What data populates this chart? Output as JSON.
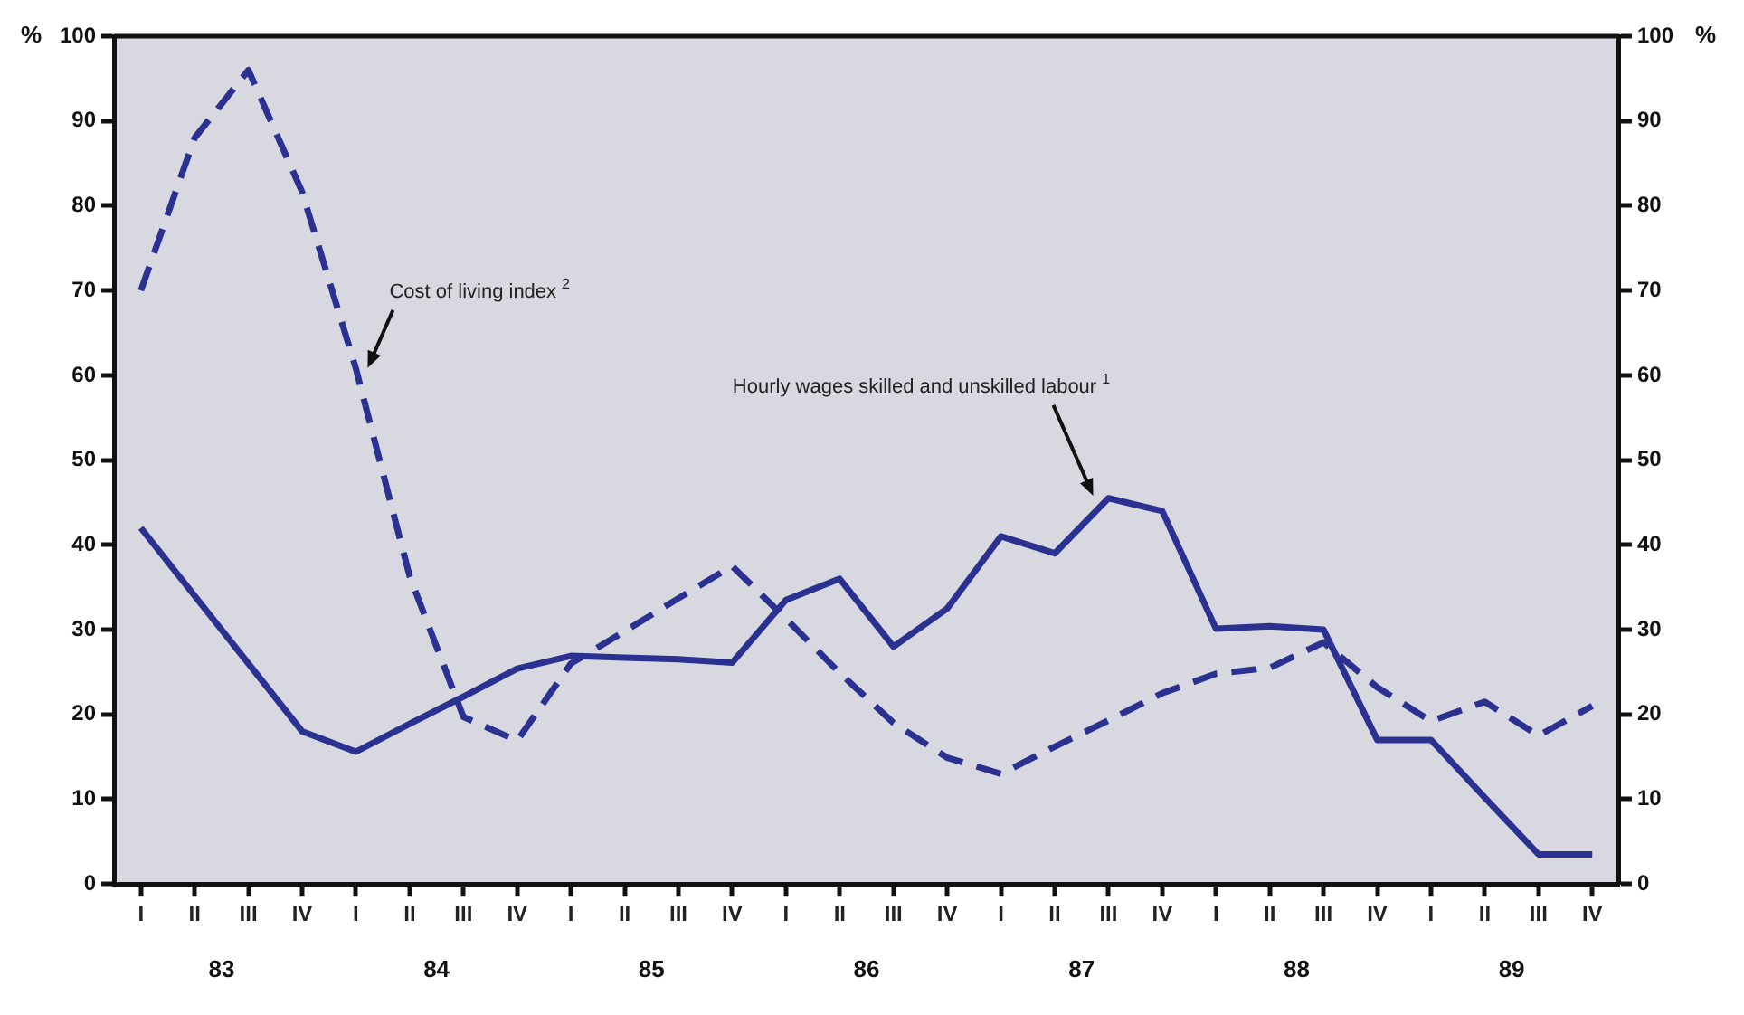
{
  "chart_data": {
    "type": "line",
    "ylabel": "%",
    "y2label": "%",
    "categories": [
      "I",
      "II",
      "III",
      "IV",
      "I",
      "II",
      "III",
      "IV",
      "I",
      "II",
      "III",
      "IV",
      "I",
      "II",
      "III",
      "IV",
      "I",
      "II",
      "III",
      "IV",
      "I",
      "II",
      "III",
      "IV",
      "I",
      "II",
      "III",
      "IV"
    ],
    "ylim": [
      0,
      100
    ],
    "y2lim": [
      0,
      100
    ],
    "yticks": [
      0,
      10,
      20,
      30,
      40,
      50,
      60,
      70,
      80,
      90,
      100
    ],
    "y2ticks": [
      0,
      10,
      20,
      30,
      40,
      50,
      60,
      70,
      80,
      90,
      100
    ],
    "grid": false,
    "legend": false,
    "marker": "none",
    "series": [
      {
        "name": "Hourly wages skilled and unskilled labour$^{1}$",
        "color": "#2b3190",
        "line_style": "solid",
        "values": [
          42,
          34,
          26,
          18,
          15.6,
          18.9,
          22.1,
          25.4,
          26.9,
          26.7,
          26.5,
          26.1,
          33.5,
          36,
          28,
          32.5,
          41,
          39,
          45.5,
          44,
          30.1,
          30.4,
          30,
          17,
          17,
          10.2,
          3.5,
          3.5
        ]
      },
      {
        "name": "Cost of living index$^{2}$",
        "color": "#2b3190",
        "line_style": "dashed",
        "values": [
          70,
          88,
          96,
          81.6,
          60.8,
          36.3,
          19.7,
          16.9,
          26,
          29.8,
          33.7,
          37.5,
          31.3,
          24.9,
          19,
          14.9,
          13,
          16.2,
          19.3,
          22.5,
          24.8,
          25.5,
          28.5,
          23.2,
          19.2,
          21.5,
          17.5,
          21
        ]
      }
    ],
    "annotations": [
      "83",
      "84",
      "85",
      "86",
      "87",
      "88",
      "89"
    ]
  }
}
